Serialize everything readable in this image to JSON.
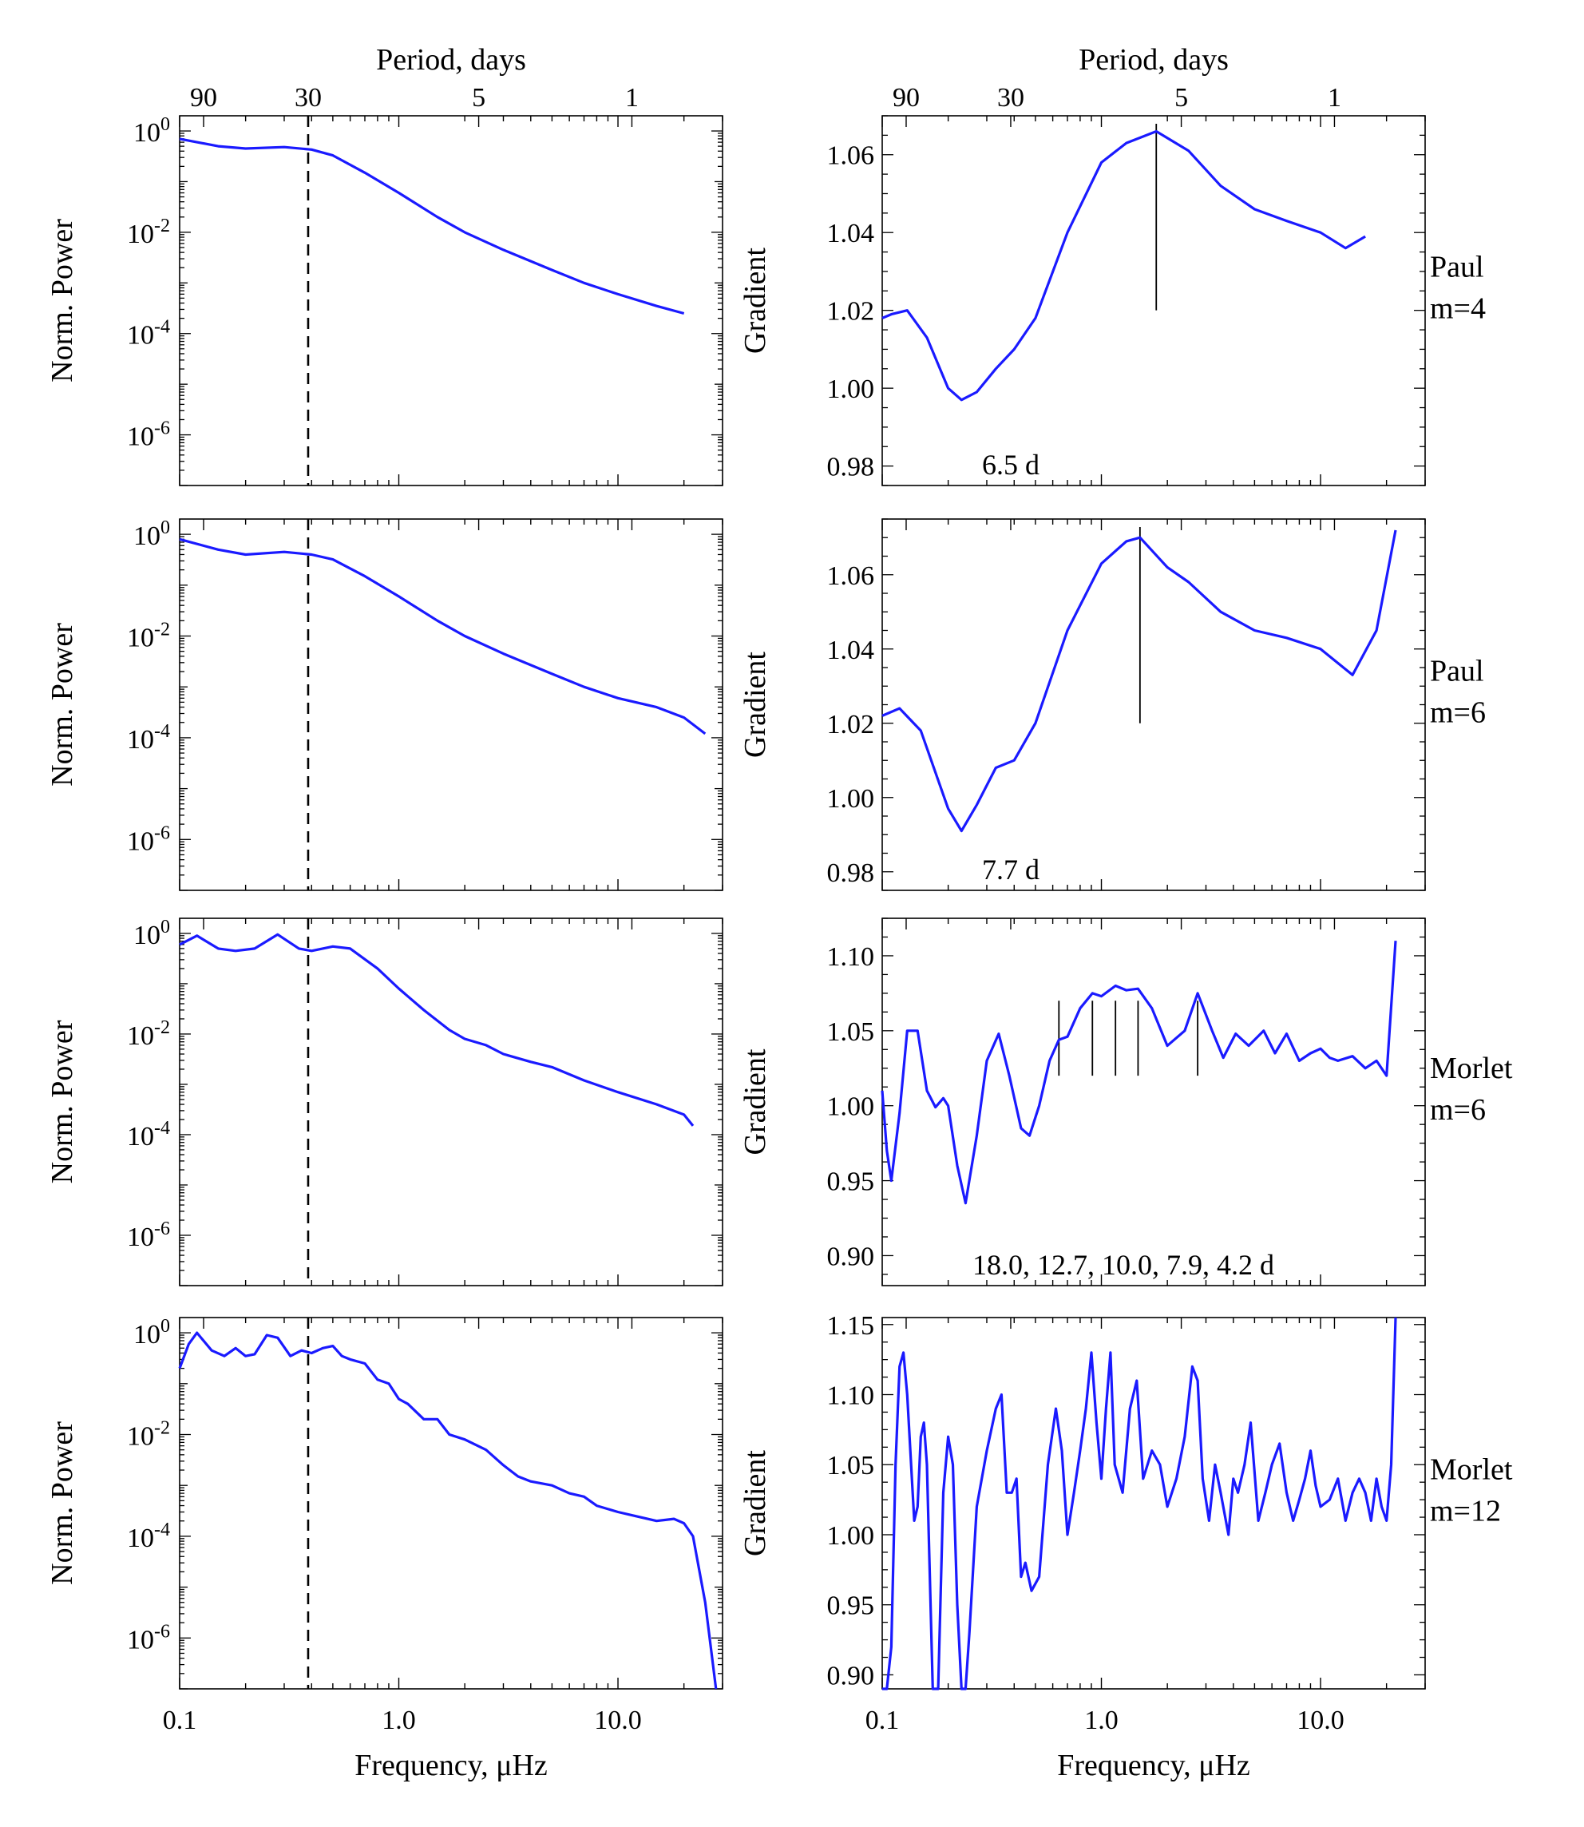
{
  "figure": {
    "top_axis_label": "Period, days",
    "bottom_axis_label": "Frequency, μHz",
    "left_ylabel": "Norm. Power",
    "right_ylabel": "Gradient",
    "x_tick_labels": [
      "0.1",
      "1.0",
      "10.0"
    ],
    "period_tick_labels": [
      "90",
      "30",
      "5",
      "1"
    ],
    "power_tick_mantissa": "10",
    "power_tick_exponents": [
      "0",
      "-2",
      "-4",
      "-6"
    ]
  },
  "colors": {
    "curve": "#1a1aff",
    "marker": "#000000",
    "annotation": "#1a1aff"
  },
  "chart_data": [
    {
      "type": "line",
      "panel": "left",
      "row": 1,
      "log_x": true,
      "log_y": true,
      "xlabel": "",
      "ylabel": "Norm. Power",
      "xlim": [
        0.1,
        30
      ],
      "ylim_log10": [
        -7.0,
        0.3
      ],
      "vline_period_days": 30,
      "series": [
        {
          "x": [
            0.1,
            0.15,
            0.2,
            0.3,
            0.4,
            0.5,
            0.7,
            1,
            1.5,
            2,
            3,
            5,
            7,
            10,
            15,
            20
          ],
          "y": [
            0.7,
            0.5,
            0.45,
            0.48,
            0.43,
            0.33,
            0.15,
            0.06,
            0.02,
            0.01,
            0.0045,
            0.0018,
            0.001,
            0.0006,
            0.00035,
            0.00025
          ]
        }
      ]
    },
    {
      "type": "line",
      "panel": "right",
      "row": 1,
      "log_x": true,
      "caption": "Paul",
      "caption2": "m=4",
      "xlabel": "",
      "ylabel": "Gradient",
      "xlim": [
        0.1,
        30
      ],
      "ylim": [
        0.975,
        1.07
      ],
      "y_ticks": [
        "0.98",
        "1.00",
        "1.02",
        "1.04",
        "1.06"
      ],
      "annotation": "6.5 d",
      "marker_x": [
        1.78
      ],
      "series": [
        {
          "x": [
            0.1,
            0.11,
            0.13,
            0.16,
            0.2,
            0.23,
            0.27,
            0.33,
            0.4,
            0.5,
            0.7,
            1,
            1.3,
            1.78,
            2.5,
            3.5,
            5,
            7,
            10,
            13,
            16
          ],
          "y": [
            1.018,
            1.019,
            1.02,
            1.013,
            1.0,
            0.997,
            0.999,
            1.005,
            1.01,
            1.018,
            1.04,
            1.058,
            1.063,
            1.066,
            1.061,
            1.052,
            1.046,
            1.043,
            1.04,
            1.036,
            1.039
          ]
        }
      ]
    },
    {
      "type": "line",
      "panel": "left",
      "row": 2,
      "log_x": true,
      "log_y": true,
      "xlabel": "",
      "ylabel": "Norm. Power",
      "xlim": [
        0.1,
        30
      ],
      "ylim_log10": [
        -7.0,
        0.3
      ],
      "vline_period_days": 30,
      "series": [
        {
          "x": [
            0.1,
            0.15,
            0.2,
            0.3,
            0.4,
            0.5,
            0.7,
            1,
            1.5,
            2,
            3,
            5,
            7,
            10,
            15,
            20,
            25
          ],
          "y": [
            0.8,
            0.5,
            0.4,
            0.45,
            0.4,
            0.32,
            0.15,
            0.06,
            0.02,
            0.01,
            0.0045,
            0.0018,
            0.001,
            0.0006,
            0.0004,
            0.00025,
            0.00012
          ]
        }
      ]
    },
    {
      "type": "line",
      "panel": "right",
      "row": 2,
      "log_x": true,
      "caption": "Paul",
      "caption2": "m=6",
      "xlabel": "",
      "ylabel": "Gradient",
      "xlim": [
        0.1,
        30
      ],
      "ylim": [
        0.975,
        1.075
      ],
      "y_ticks": [
        "0.98",
        "1.00",
        "1.02",
        "1.04",
        "1.06"
      ],
      "annotation": "7.7 d",
      "marker_x": [
        1.5
      ],
      "series": [
        {
          "x": [
            0.1,
            0.12,
            0.15,
            0.2,
            0.23,
            0.27,
            0.33,
            0.4,
            0.5,
            0.7,
            1,
            1.3,
            1.5,
            2,
            2.5,
            3.5,
            5,
            7,
            10,
            14,
            18,
            22
          ],
          "y": [
            1.022,
            1.024,
            1.018,
            0.997,
            0.991,
            0.998,
            1.008,
            1.01,
            1.02,
            1.045,
            1.063,
            1.069,
            1.07,
            1.062,
            1.058,
            1.05,
            1.045,
            1.043,
            1.04,
            1.033,
            1.045,
            1.072
          ]
        }
      ]
    },
    {
      "type": "line",
      "panel": "left",
      "row": 3,
      "log_x": true,
      "log_y": true,
      "xlabel": "",
      "ylabel": "Norm. Power",
      "xlim": [
        0.1,
        30
      ],
      "ylim_log10": [
        -7.0,
        0.3
      ],
      "vline_period_days": 30,
      "series": [
        {
          "x": [
            0.1,
            0.12,
            0.15,
            0.18,
            0.22,
            0.28,
            0.35,
            0.4,
            0.5,
            0.6,
            0.8,
            1,
            1.3,
            1.7,
            2,
            2.5,
            3,
            4,
            5,
            7,
            10,
            15,
            20,
            22
          ],
          "y": [
            0.6,
            0.9,
            0.5,
            0.45,
            0.5,
            0.95,
            0.5,
            0.45,
            0.55,
            0.5,
            0.2,
            0.08,
            0.03,
            0.012,
            0.008,
            0.006,
            0.004,
            0.0028,
            0.0022,
            0.0012,
            0.0007,
            0.0004,
            0.00025,
            0.00015
          ]
        }
      ]
    },
    {
      "type": "line",
      "panel": "right",
      "row": 3,
      "log_x": true,
      "caption": "Morlet",
      "caption2": "m=6",
      "xlabel": "",
      "ylabel": "Gradient",
      "xlim": [
        0.1,
        30
      ],
      "ylim": [
        0.88,
        1.125
      ],
      "y_ticks": [
        "0.90",
        "0.95",
        "1.00",
        "1.05",
        "1.10"
      ],
      "annotation": "18.0, 12.7, 10.0,  7.9,  4.2 d",
      "marker_x": [
        0.64,
        0.91,
        1.16,
        1.47,
        2.75
      ],
      "series": [
        {
          "x": [
            0.1,
            0.105,
            0.11,
            0.12,
            0.13,
            0.145,
            0.16,
            0.175,
            0.19,
            0.2,
            0.22,
            0.24,
            0.27,
            0.3,
            0.34,
            0.38,
            0.43,
            0.47,
            0.52,
            0.58,
            0.64,
            0.7,
            0.8,
            0.91,
            1.0,
            1.16,
            1.3,
            1.47,
            1.7,
            2.0,
            2.4,
            2.75,
            3.2,
            3.6,
            4.1,
            4.7,
            5.5,
            6.2,
            7.0,
            8.0,
            9.0,
            10,
            11,
            12,
            14,
            16,
            18,
            20,
            22
          ],
          "y": [
            1.01,
            0.97,
            0.95,
            0.995,
            1.05,
            1.05,
            1.01,
            0.999,
            1.005,
            1.0,
            0.96,
            0.935,
            0.98,
            1.03,
            1.048,
            1.02,
            0.985,
            0.98,
            1.0,
            1.03,
            1.044,
            1.046,
            1.065,
            1.075,
            1.073,
            1.08,
            1.077,
            1.078,
            1.065,
            1.04,
            1.05,
            1.075,
            1.05,
            1.032,
            1.048,
            1.04,
            1.05,
            1.035,
            1.048,
            1.03,
            1.035,
            1.038,
            1.032,
            1.03,
            1.033,
            1.025,
            1.03,
            1.02,
            1.11
          ]
        }
      ]
    },
    {
      "type": "line",
      "panel": "left",
      "row": 4,
      "log_x": true,
      "log_y": true,
      "xlabel": "Frequency, μHz",
      "ylabel": "Norm. Power",
      "xlim": [
        0.1,
        30
      ],
      "ylim_log10": [
        -7.0,
        0.3
      ],
      "vline_period_days": 30,
      "series": [
        {
          "x": [
            0.1,
            0.11,
            0.12,
            0.14,
            0.16,
            0.18,
            0.2,
            0.22,
            0.25,
            0.28,
            0.32,
            0.36,
            0.4,
            0.45,
            0.5,
            0.55,
            0.6,
            0.7,
            0.8,
            0.9,
            1.0,
            1.1,
            1.3,
            1.5,
            1.7,
            2.0,
            2.5,
            3.0,
            3.5,
            4,
            5,
            6,
            7,
            8,
            10,
            12,
            15,
            18,
            20,
            22,
            25,
            28
          ],
          "y": [
            0.2,
            0.6,
            1.0,
            0.45,
            0.35,
            0.5,
            0.35,
            0.38,
            0.9,
            0.8,
            0.35,
            0.45,
            0.4,
            0.5,
            0.55,
            0.35,
            0.3,
            0.25,
            0.12,
            0.1,
            0.05,
            0.04,
            0.02,
            0.02,
            0.01,
            0.008,
            0.005,
            0.0025,
            0.0015,
            0.0012,
            0.001,
            0.0007,
            0.0006,
            0.0004,
            0.0003,
            0.00025,
            0.0002,
            0.00022,
            0.00018,
            0.0001,
            5e-06,
            1e-07
          ]
        }
      ]
    },
    {
      "type": "line",
      "panel": "right",
      "row": 4,
      "log_x": true,
      "caption": "Morlet",
      "caption2": "m=12",
      "xlabel": "Frequency, μHz",
      "ylabel": "Gradient",
      "xlim": [
        0.1,
        30
      ],
      "ylim": [
        0.89,
        1.155
      ],
      "y_ticks": [
        "0.90",
        "0.95",
        "1.00",
        "1.05",
        "1.10",
        "1.15"
      ],
      "series": [
        {
          "x": [
            0.1,
            0.105,
            0.11,
            0.115,
            0.12,
            0.125,
            0.13,
            0.14,
            0.145,
            0.15,
            0.155,
            0.16,
            0.17,
            0.18,
            0.19,
            0.2,
            0.21,
            0.22,
            0.23,
            0.24,
            0.25,
            0.27,
            0.3,
            0.33,
            0.35,
            0.37,
            0.39,
            0.41,
            0.43,
            0.45,
            0.48,
            0.52,
            0.57,
            0.62,
            0.66,
            0.7,
            0.75,
            0.8,
            0.85,
            0.9,
            0.95,
            1.0,
            1.05,
            1.1,
            1.15,
            1.25,
            1.35,
            1.45,
            1.55,
            1.7,
            1.85,
            2.0,
            2.2,
            2.4,
            2.6,
            2.75,
            2.9,
            3.1,
            3.3,
            3.5,
            3.8,
            4.0,
            4.2,
            4.5,
            4.8,
            5.2,
            5.6,
            6.0,
            6.5,
            7.0,
            7.5,
            8.0,
            8.5,
            9.0,
            9.5,
            10,
            11,
            12,
            13,
            14,
            15,
            16,
            17,
            18,
            19,
            20,
            21,
            22
          ],
          "y": [
            0.88,
            0.87,
            0.92,
            1.05,
            1.12,
            1.13,
            1.1,
            1.01,
            1.02,
            1.07,
            1.08,
            1.05,
            0.88,
            0.87,
            1.03,
            1.07,
            1.05,
            0.95,
            0.88,
            0.87,
            0.93,
            1.02,
            1.06,
            1.09,
            1.1,
            1.03,
            1.03,
            1.04,
            0.97,
            0.98,
            0.96,
            0.97,
            1.05,
            1.09,
            1.06,
            1.0,
            1.03,
            1.06,
            1.09,
            1.13,
            1.08,
            1.04,
            1.09,
            1.13,
            1.05,
            1.03,
            1.09,
            1.11,
            1.04,
            1.06,
            1.05,
            1.02,
            1.04,
            1.07,
            1.12,
            1.11,
            1.04,
            1.01,
            1.05,
            1.03,
            1.0,
            1.04,
            1.03,
            1.05,
            1.08,
            1.01,
            1.03,
            1.05,
            1.065,
            1.03,
            1.01,
            1.025,
            1.04,
            1.06,
            1.035,
            1.02,
            1.025,
            1.04,
            1.01,
            1.03,
            1.04,
            1.03,
            1.01,
            1.04,
            1.02,
            1.01,
            1.05,
            1.16
          ]
        }
      ]
    }
  ]
}
